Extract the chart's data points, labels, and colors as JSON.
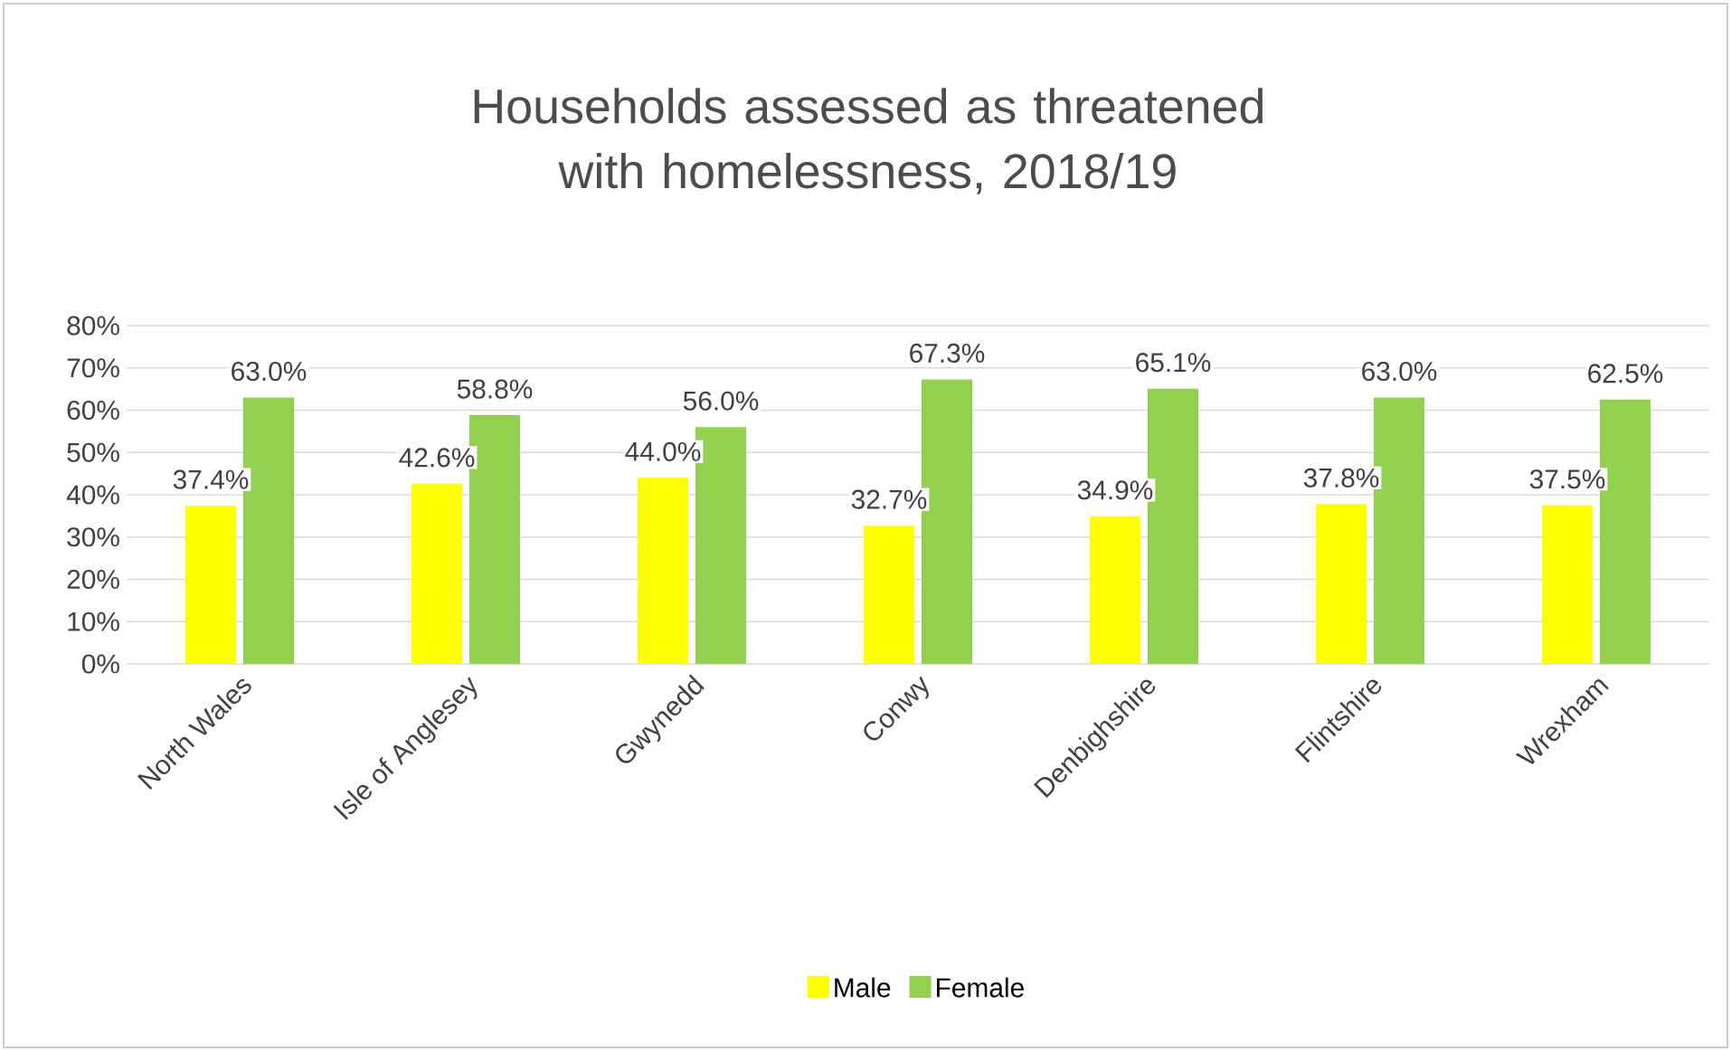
{
  "chart_data": {
    "type": "bar",
    "title": "Households assessed as threatened with homelessness, 2018/19",
    "categories": [
      "North Wales",
      "Isle of Anglesey",
      "Gwynedd",
      "Conwy",
      "Denbighshire",
      "Flintshire",
      "Wrexham"
    ],
    "series": [
      {
        "name": "Male",
        "color": "#ffff00",
        "values": [
          37.4,
          42.6,
          44.0,
          32.7,
          34.9,
          37.8,
          37.5
        ],
        "value_labels": [
          "37.4%",
          "42.6%",
          "44.0%",
          "32.7%",
          "34.9%",
          "37.8%",
          "37.5%"
        ]
      },
      {
        "name": "Female",
        "color": "#92d050",
        "values": [
          63.0,
          58.8,
          56.0,
          67.3,
          65.1,
          63.0,
          62.5
        ],
        "value_labels": [
          "63.0%",
          "58.8%",
          "56.0%",
          "67.3%",
          "65.1%",
          "63.0%",
          "62.5%"
        ]
      }
    ],
    "ylim": [
      0,
      80
    ],
    "yticks": [
      {
        "value": 0,
        "label": "0%"
      },
      {
        "value": 10,
        "label": "10%"
      },
      {
        "value": 20,
        "label": "20%"
      },
      {
        "value": 30,
        "label": "30%"
      },
      {
        "value": 40,
        "label": "40%"
      },
      {
        "value": 50,
        "label": "50%"
      },
      {
        "value": 60,
        "label": "60%"
      },
      {
        "value": 70,
        "label": "70%"
      },
      {
        "value": 80,
        "label": "80%"
      }
    ],
    "grid": "y",
    "legend": "bottom"
  }
}
